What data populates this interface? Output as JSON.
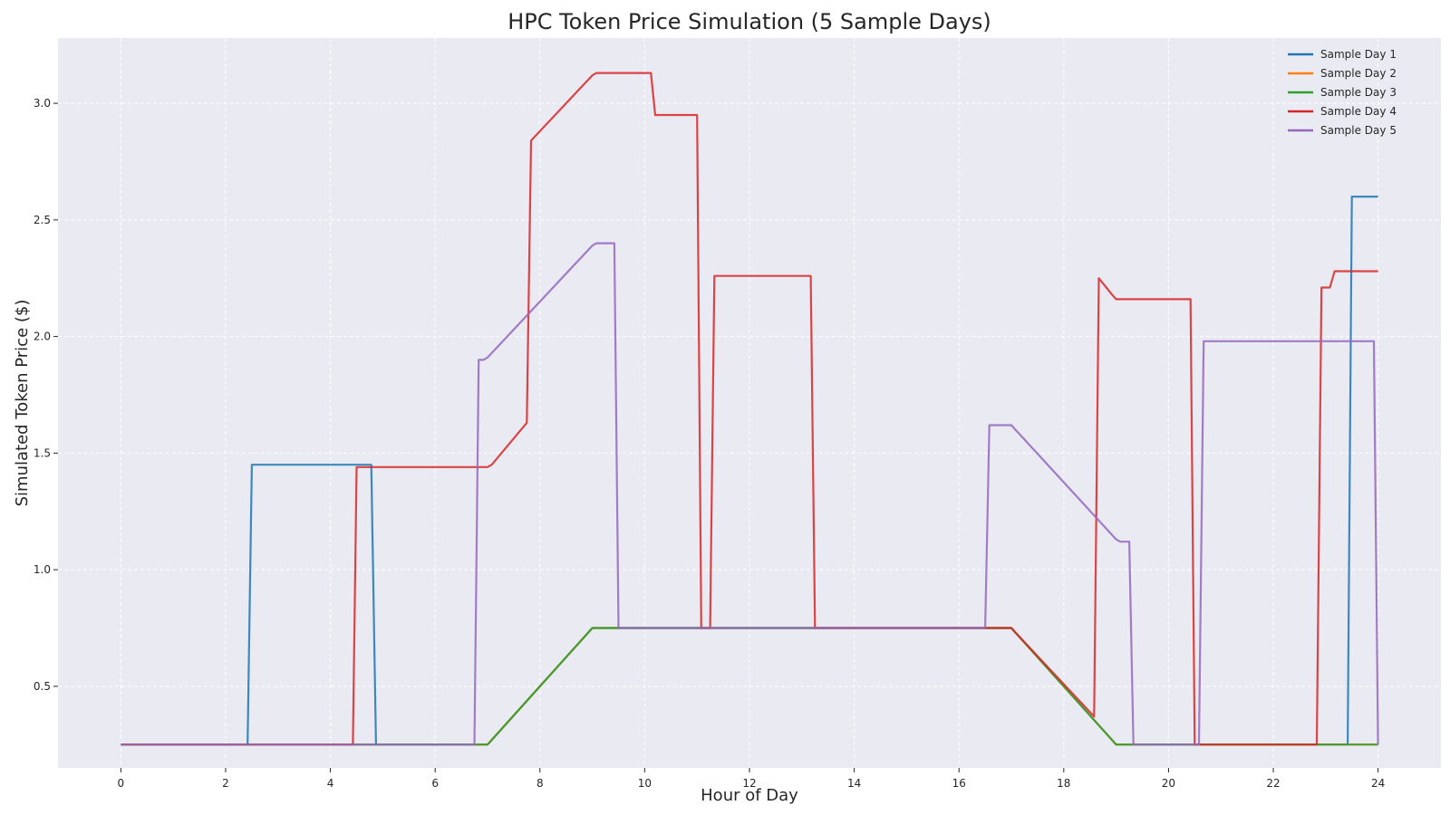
{
  "chart_data": {
    "type": "line",
    "title": "HPC Token Price Simulation (5 Sample Days)",
    "xlabel": "Hour of Day",
    "ylabel": "Simulated Token Price ($)",
    "xlim": [
      -1.2,
      25.2
    ],
    "ylim": [
      0.15,
      3.28
    ],
    "xticks": [
      0,
      2,
      4,
      6,
      8,
      10,
      12,
      14,
      16,
      18,
      20,
      22,
      24
    ],
    "xtick_labels": [
      "0",
      "2",
      "4",
      "6",
      "8",
      "10",
      "12",
      "14",
      "16",
      "18",
      "20",
      "22",
      "24"
    ],
    "yticks": [
      0.5,
      1.0,
      1.5,
      2.0,
      2.5,
      3.0
    ],
    "ytick_labels": [
      "0.5",
      "1.0",
      "1.5",
      "2.0",
      "2.5",
      "3.0"
    ],
    "grid": true,
    "legend_position": "top-right",
    "background_color": "#eaeaf2",
    "series": [
      {
        "name": "Sample Day 1",
        "color": "#1f77b4",
        "points": [
          [
            0,
            0.25
          ],
          [
            2.42,
            0.25
          ],
          [
            2.5,
            1.45
          ],
          [
            4.78,
            1.45
          ],
          [
            4.87,
            0.25
          ],
          [
            7.0,
            0.25
          ],
          [
            7.08,
            0.27
          ],
          [
            9.0,
            0.75
          ],
          [
            17.0,
            0.75
          ],
          [
            17.08,
            0.73
          ],
          [
            19.0,
            0.25
          ],
          [
            23.42,
            0.25
          ],
          [
            23.5,
            2.6
          ],
          [
            24,
            2.6
          ]
        ]
      },
      {
        "name": "Sample Day 2",
        "color": "#ff7f0e",
        "points": [
          [
            0,
            0.25
          ],
          [
            7.0,
            0.25
          ],
          [
            7.08,
            0.27
          ],
          [
            9.0,
            0.75
          ],
          [
            17.0,
            0.75
          ],
          [
            17.08,
            0.73
          ],
          [
            19.0,
            0.25
          ],
          [
            24,
            0.25
          ]
        ]
      },
      {
        "name": "Sample Day 3",
        "color": "#2ca02c",
        "points": [
          [
            0,
            0.25
          ],
          [
            7.0,
            0.25
          ],
          [
            7.08,
            0.27
          ],
          [
            9.0,
            0.75
          ],
          [
            17.0,
            0.75
          ],
          [
            17.08,
            0.73
          ],
          [
            19.0,
            0.25
          ],
          [
            24,
            0.25
          ]
        ]
      },
      {
        "name": "Sample Day 4",
        "color": "#d62728",
        "points": [
          [
            0,
            0.25
          ],
          [
            4.43,
            0.25
          ],
          [
            4.5,
            1.44
          ],
          [
            6.92,
            1.44
          ],
          [
            7.0,
            1.44
          ],
          [
            7.08,
            1.45
          ],
          [
            7.75,
            1.63
          ],
          [
            7.83,
            2.84
          ],
          [
            9.0,
            3.12
          ],
          [
            9.08,
            3.13
          ],
          [
            10.12,
            3.13
          ],
          [
            10.2,
            2.95
          ],
          [
            11.0,
            2.95
          ],
          [
            11.08,
            0.75
          ],
          [
            11.17,
            0.75
          ],
          [
            11.25,
            0.75
          ],
          [
            11.33,
            2.26
          ],
          [
            13.17,
            2.26
          ],
          [
            13.25,
            0.75
          ],
          [
            17.0,
            0.75
          ],
          [
            17.08,
            0.73
          ],
          [
            18.58,
            0.37
          ],
          [
            18.67,
            2.25
          ],
          [
            18.92,
            2.18
          ],
          [
            19.0,
            2.16
          ],
          [
            20.42,
            2.16
          ],
          [
            20.5,
            0.25
          ],
          [
            22.83,
            0.25
          ],
          [
            22.92,
            2.21
          ],
          [
            23.08,
            2.21
          ],
          [
            23.17,
            2.28
          ],
          [
            24,
            2.28
          ]
        ]
      },
      {
        "name": "Sample Day 5",
        "color": "#9467bd",
        "points": [
          [
            0,
            0.25
          ],
          [
            6.75,
            0.25
          ],
          [
            6.83,
            1.9
          ],
          [
            6.92,
            1.9
          ],
          [
            7.0,
            1.91
          ],
          [
            9.0,
            2.39
          ],
          [
            9.08,
            2.4
          ],
          [
            9.42,
            2.4
          ],
          [
            9.5,
            0.75
          ],
          [
            16.5,
            0.75
          ],
          [
            16.58,
            1.62
          ],
          [
            16.92,
            1.62
          ],
          [
            17.0,
            1.62
          ],
          [
            17.08,
            1.6
          ],
          [
            19.0,
            1.13
          ],
          [
            19.08,
            1.12
          ],
          [
            19.25,
            1.12
          ],
          [
            19.33,
            0.25
          ],
          [
            20.58,
            0.25
          ],
          [
            20.67,
            1.98
          ],
          [
            23.92,
            1.98
          ],
          [
            24.0,
            0.25
          ]
        ]
      }
    ]
  }
}
